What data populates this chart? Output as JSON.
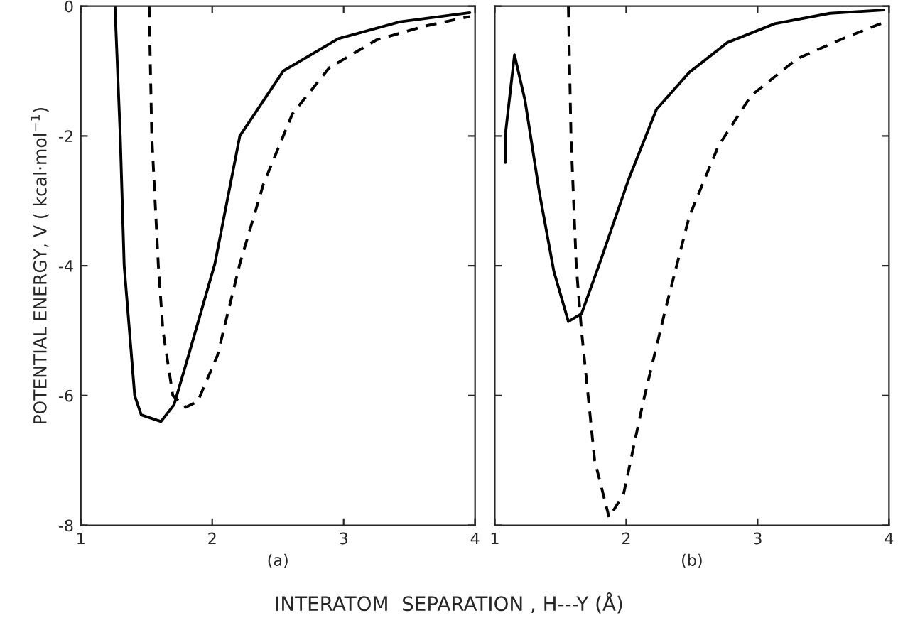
{
  "chart_data": [
    {
      "type": "line",
      "ylabel": "POTENTIAL ENERGY, V ( kcal·mol$^{−1}$)",
      "xlabel": "INTERATOM  SEPARATION , H---Y (Å)",
      "annotations": [
        "(a)"
      ],
      "xlim": [
        1,
        4
      ],
      "ylim": [
        -8,
        0
      ],
      "xticks": [
        1,
        2,
        3,
        4
      ],
      "yticks": [
        0,
        -2,
        -4,
        -6,
        -8
      ],
      "grid": false,
      "legend": false,
      "series": [
        {
          "color": "#000000",
          "line_style": "solid",
          "x": [
            1.26,
            1.3,
            1.33,
            1.41,
            1.46,
            1.61,
            1.71,
            1.82,
            2.02,
            2.21,
            2.54,
            2.96,
            3.43,
            3.96
          ],
          "values": [
            0,
            -2,
            -4,
            -6,
            -6.3,
            -6.4,
            -6.14,
            -5.38,
            -3.97,
            -2.0,
            -1.0,
            -0.5,
            -0.24,
            -0.1
          ]
        },
        {
          "color": "#000000",
          "line_style": "dashed",
          "x": [
            1.52,
            1.54,
            1.59,
            1.625,
            1.7,
            1.8,
            1.89,
            2.04,
            2.21,
            2.39,
            2.61,
            2.89,
            3.25,
            3.61,
            3.96
          ],
          "values": [
            0,
            -2,
            -4,
            -5,
            -6,
            -6.18,
            -6.09,
            -5.38,
            -3.97,
            -2.74,
            -1.66,
            -0.95,
            -0.52,
            -0.31,
            -0.16
          ]
        }
      ]
    },
    {
      "type": "line",
      "annotations": [
        "(b)"
      ],
      "xlim": [
        1,
        4
      ],
      "ylim": [
        -8,
        0
      ],
      "xticks": [
        1,
        2,
        3,
        4
      ],
      "yticks": [
        0,
        -2,
        -4,
        -6,
        -8
      ],
      "tick_labels": "x",
      "grid": false,
      "legend": false,
      "series": [
        {
          "color": "#000000",
          "line_style": "solid",
          "x": [
            1.08,
            1.08,
            1.15,
            1.23,
            1.34,
            1.45,
            1.56,
            1.66,
            1.8,
            2.02,
            2.23,
            2.48,
            2.77,
            3.13,
            3.55,
            3.96
          ],
          "values": [
            -2.41,
            -1.99,
            -0.75,
            -1.45,
            -2.88,
            -4.09,
            -4.86,
            -4.74,
            -3.95,
            -2.66,
            -1.59,
            -1.02,
            -0.56,
            -0.27,
            -0.11,
            -0.06
          ]
        },
        {
          "color": "#000000",
          "line_style": "dashed",
          "x": [
            1.56,
            1.58,
            1.62,
            1.66,
            1.71,
            1.76,
            1.87,
            1.98,
            2.13,
            2.3,
            2.48,
            2.7,
            2.95,
            3.3,
            3.66,
            3.96
          ],
          "values": [
            0,
            -2,
            -4,
            -5,
            -6,
            -7,
            -7.88,
            -7.52,
            -6.09,
            -4.66,
            -3.24,
            -2.16,
            -1.38,
            -0.81,
            -0.49,
            -0.25
          ]
        }
      ]
    }
  ]
}
